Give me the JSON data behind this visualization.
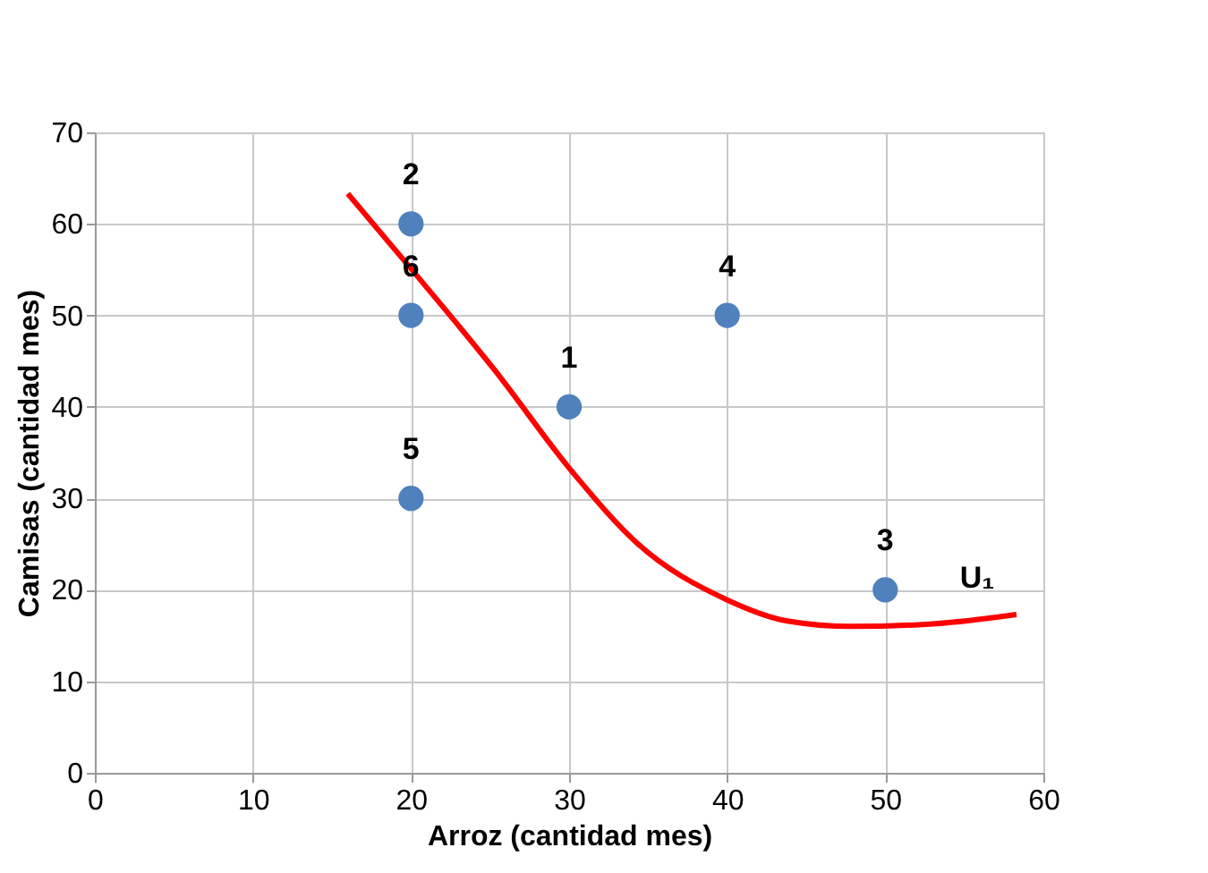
{
  "chart_data": {
    "type": "scatter",
    "xlabel": "Arroz (cantidad mes)",
    "ylabel": "Camisas (cantidad mes)",
    "annotations": [
      {
        "text": "1",
        "x": 30,
        "y": 40
      },
      {
        "text": "2",
        "x": 20,
        "y": 60
      },
      {
        "text": "3",
        "x": 50,
        "y": 20
      },
      {
        "text": "4",
        "x": 40,
        "y": 50
      },
      {
        "text": "5",
        "x": 20,
        "y": 30
      },
      {
        "text": "6",
        "x": 20,
        "y": 50
      }
    ],
    "xlim": [
      0,
      60
    ],
    "xticks": [
      0,
      10,
      20,
      30,
      40,
      50,
      60
    ],
    "ylim": [
      0,
      70
    ],
    "yticks": [
      0,
      10,
      20,
      30,
      40,
      50,
      60,
      70
    ],
    "grid": true,
    "series": [
      {
        "color": "#4f81bd",
        "marker": "circle",
        "x": [
          30,
          20,
          50,
          40,
          20,
          20
        ],
        "values": [
          40,
          60,
          20,
          50,
          30,
          50
        ]
      },
      {
        "type": "line",
        "name": "U₁",
        "color": "#ff0000",
        "marker": "none",
        "line_style": "solid",
        "x": [
          16.0,
          20.0,
          25.3,
          30.2,
          34.3,
          40.0,
          43.8,
          47.9,
          53.2,
          58.3
        ],
        "values": [
          63.3,
          55.1,
          44.0,
          32.9,
          25.1,
          18.9,
          16.6,
          16.0,
          16.3,
          17.3
        ]
      }
    ]
  }
}
